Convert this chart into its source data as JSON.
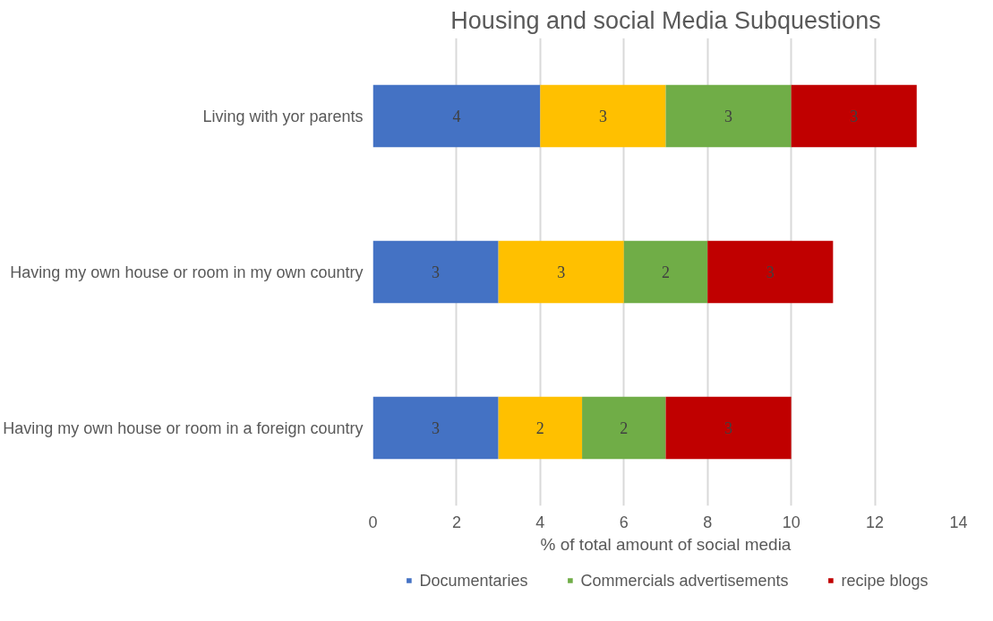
{
  "chart_data": {
    "type": "bar",
    "orientation": "horizontal",
    "stacked": true,
    "title": "Housing and social Media Subquestions",
    "xlabel": "% of total amount of social media",
    "categories": [
      "Living with yor parents",
      "Having my own house or room in my own country",
      "Having my own house or room in a foreign country"
    ],
    "series": [
      {
        "name": "Documentaries",
        "color": "#4472c4",
        "values": [
          4,
          3,
          3
        ]
      },
      {
        "color": "#ffc000",
        "values": [
          3,
          3,
          2
        ]
      },
      {
        "name": "Commercials advertisements",
        "color": "#70ad47",
        "values": [
          3,
          2,
          2
        ]
      },
      {
        "name": "recipe blogs",
        "color": "#c00000",
        "values": [
          3,
          3,
          3
        ]
      }
    ],
    "xlim": [
      0,
      14
    ],
    "xticks": [
      0,
      2,
      4,
      6,
      8,
      10,
      12,
      14
    ],
    "grid": "x",
    "legend": "bottom",
    "data_labels": true
  }
}
